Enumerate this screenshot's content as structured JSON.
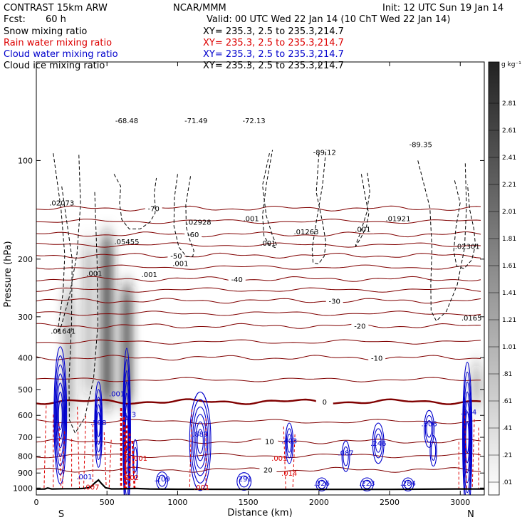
{
  "header": {
    "model": "CONTRAST 15km ARW",
    "center": "NCAR/MMM",
    "init": "Init: 12 UTC Sun 19 Jan 14",
    "fcst_label": "Fcst:",
    "fcst_value": "60 h",
    "valid": "Valid: 00 UTC Wed 22 Jan 14 (10 ChT Wed 22 Jan 14)"
  },
  "legend": [
    {
      "name": "Snow mixing ratio",
      "color": "#000000",
      "xy": "XY= 235.3,  2.5 to 235.3,214.7"
    },
    {
      "name": "Rain water mixing ratio",
      "color": "#dd0000",
      "xy": "XY= 235.3,  2.5 to 235.3,214.7"
    },
    {
      "name": "Cloud water mixing ratio",
      "color": "#0000cc",
      "xy": "XY= 235.3,  2.5 to 235.3,214.7"
    },
    {
      "name": "Cloud ice mixing ratio",
      "color": "#000000",
      "xy": "XY= 235.3,  2.5 to 235.3,214.7"
    }
  ],
  "colors": {
    "temperature": "#800000",
    "rain": "#dd0000",
    "cloud_water": "#0000cc",
    "ice": "#000000",
    "terrain": "#000000"
  },
  "chart_data": {
    "type": "heatmap",
    "title": "",
    "xlabel": "Distance (km)",
    "ylabel": "Pressure (hPa)",
    "xlim": [
      0,
      3170
    ],
    "ylim": [
      1050,
      50
    ],
    "y_scale": "log",
    "x_ticks": [
      0,
      500,
      1000,
      1500,
      2000,
      2500,
      3000
    ],
    "y_ticks": [
      100,
      200,
      300,
      400,
      500,
      600,
      700,
      800,
      900,
      1000
    ],
    "end_labels": {
      "left": "S",
      "right": "N"
    },
    "colorbar": {
      "unit": "g kg⁻¹",
      "levels": [
        ".01",
        ".21",
        ".41",
        ".61",
        ".81",
        "1.01",
        "1.21",
        "1.41",
        "1.61",
        "1.81",
        "2.01",
        "2.21",
        "2.41",
        "2.61",
        "2.81"
      ]
    },
    "snow_columns": [
      {
        "x": 230,
        "p_top": 250,
        "p_bot": 600,
        "max": 1.1
      },
      {
        "x": 370,
        "p_top": 180,
        "p_bot": 520,
        "max": 0.9
      },
      {
        "x": 500,
        "p_top": 170,
        "p_bot": 560,
        "max": 2.4
      },
      {
        "x": 640,
        "p_top": 240,
        "p_bot": 560,
        "max": 2.2
      },
      {
        "x": 3115,
        "p_top": 420,
        "p_bot": 560,
        "max": 1.0
      }
    ],
    "temperature_contours": [
      {
        "label": "-70",
        "p": 140,
        "label_x": 830
      },
      {
        "label": "-60",
        "p": 168,
        "label_x": 1110
      },
      {
        "label": "-50",
        "p": 195,
        "label_x": 990
      },
      {
        "label": "-40",
        "p": 230,
        "label_x": 1420
      },
      {
        "label": "-30",
        "p": 268,
        "label_x": 2110
      },
      {
        "label": "-20",
        "p": 320,
        "label_x": 2290
      },
      {
        "label": "-10",
        "p": 400,
        "label_x": 2410
      },
      {
        "label": "0",
        "p": 545,
        "label_x": 2040
      },
      {
        "label": "10",
        "p": 720,
        "label_x": 1650
      },
      {
        "label": "20",
        "p": 880,
        "label_x": 1640
      }
    ],
    "contour_labels": [
      {
        "text": "-68.48",
        "x": 640,
        "p": 77,
        "color": "ice"
      },
      {
        "text": "-71.49",
        "x": 1130,
        "p": 77,
        "color": "ice"
      },
      {
        "text": "-72.13",
        "x": 1540,
        "p": 77,
        "color": "ice"
      },
      {
        "text": "-89.12",
        "x": 2040,
        "p": 96,
        "color": "ice"
      },
      {
        "text": "-89.35",
        "x": 2720,
        "p": 91,
        "color": "ice"
      },
      {
        "text": ".02073",
        "x": 180,
        "p": 137,
        "color": "ice"
      },
      {
        "text": ".02928",
        "x": 1150,
        "p": 157,
        "color": "ice"
      },
      {
        "text": ".01263",
        "x": 1910,
        "p": 168,
        "color": "ice"
      },
      {
        "text": ".01921",
        "x": 2560,
        "p": 153,
        "color": "ice"
      },
      {
        "text": ".02301",
        "x": 3050,
        "p": 186,
        "color": "ice"
      },
      {
        "text": ".05455",
        "x": 640,
        "p": 180,
        "color": "ice"
      },
      {
        "text": ".01641",
        "x": 190,
        "p": 338,
        "color": "ice"
      },
      {
        "text": ".0165",
        "x": 3080,
        "p": 308,
        "color": "ice"
      },
      {
        "text": ".001",
        "x": 1520,
        "p": 153,
        "color": "ice"
      },
      {
        "text": ".001",
        "x": 1640,
        "p": 182,
        "color": "ice"
      },
      {
        "text": ".001",
        "x": 2310,
        "p": 165,
        "color": "ice"
      },
      {
        "text": ".001",
        "x": 410,
        "p": 225,
        "color": "ice"
      },
      {
        "text": ".001",
        "x": 800,
        "p": 227,
        "color": "ice"
      },
      {
        "text": ".001",
        "x": 1020,
        "p": 210,
        "color": "ice"
      },
      {
        "text": ".598",
        "x": 440,
        "p": 642,
        "color": "cloud_water"
      },
      {
        "text": ".973",
        "x": 650,
        "p": 607,
        "color": "cloud_water"
      },
      {
        "text": ".889",
        "x": 1160,
        "p": 697,
        "color": "cloud_water"
      },
      {
        "text": ".403",
        "x": 1790,
        "p": 730,
        "color": "cloud_water"
      },
      {
        "text": ".246",
        "x": 2420,
        "p": 744,
        "color": "cloud_water"
      },
      {
        "text": ".087",
        "x": 2190,
        "p": 796,
        "color": "cloud_water"
      },
      {
        "text": ".306",
        "x": 2780,
        "p": 647,
        "color": "cloud_water"
      },
      {
        "text": ".834",
        "x": 3060,
        "p": 597,
        "color": "cloud_water"
      },
      {
        "text": ".209",
        "x": 890,
        "p": 955,
        "color": "cloud_water"
      },
      {
        "text": ".291",
        "x": 1470,
        "p": 955,
        "color": "cloud_water"
      },
      {
        "text": ".326",
        "x": 2020,
        "p": 983,
        "color": "cloud_water"
      },
      {
        "text": ".223",
        "x": 2340,
        "p": 983,
        "color": "cloud_water"
      },
      {
        "text": ".284",
        "x": 2630,
        "p": 983,
        "color": "cloud_water"
      },
      {
        "text": ".001",
        "x": 570,
        "p": 525,
        "color": "cloud_water"
      },
      {
        "text": ".001",
        "x": 340,
        "p": 940,
        "color": "cloud_water"
      },
      {
        "text": ".001",
        "x": 1720,
        "p": 825,
        "color": "rain"
      },
      {
        "text": ".014",
        "x": 1790,
        "p": 918,
        "color": "rain"
      },
      {
        "text": ".001",
        "x": 1170,
        "p": 1015,
        "color": "rain"
      },
      {
        "text": ".001",
        "x": 730,
        "p": 825,
        "color": "rain"
      },
      {
        "text": ".102",
        "x": 670,
        "p": 945,
        "color": "rain"
      },
      {
        "text": ".007",
        "x": 390,
        "p": 1012,
        "color": "rain"
      }
    ],
    "terrain": [
      [
        0,
        1008
      ],
      [
        60,
        1007
      ],
      [
        80,
        1000
      ],
      [
        110,
        1007
      ],
      [
        200,
        1005
      ],
      [
        280,
        1005
      ],
      [
        330,
        1003
      ],
      [
        380,
        995
      ],
      [
        420,
        960
      ],
      [
        440,
        945
      ],
      [
        460,
        968
      ],
      [
        490,
        998
      ],
      [
        530,
        1006
      ],
      [
        600,
        1006
      ],
      [
        700,
        1003
      ],
      [
        800,
        1007
      ],
      [
        1000,
        1009
      ],
      [
        1500,
        1010
      ],
      [
        2000,
        1010
      ],
      [
        2500,
        1010
      ],
      [
        3000,
        1007
      ],
      [
        3170,
        1007
      ]
    ]
  }
}
